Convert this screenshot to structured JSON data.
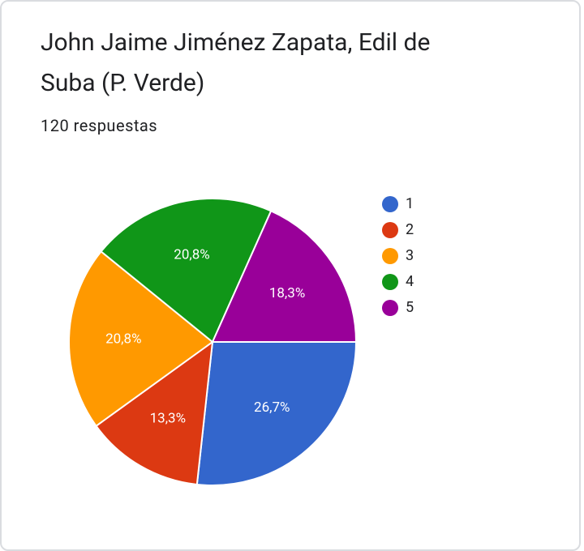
{
  "chart_data": {
    "type": "pie",
    "title": "John Jaime Jiménez Zapata, Edil de Suba (P. Verde)",
    "subtitle": "120 respuestas",
    "categories": [
      "1",
      "2",
      "3",
      "4",
      "5"
    ],
    "values": [
      26.7,
      13.3,
      20.8,
      20.8,
      18.3
    ],
    "value_labels": [
      "26,7%",
      "13,3%",
      "20,8%",
      "20,8%",
      "18,3%"
    ],
    "colors": [
      "#3366cc",
      "#dc3912",
      "#ff9900",
      "#109618",
      "#990099"
    ],
    "legend": "right"
  }
}
